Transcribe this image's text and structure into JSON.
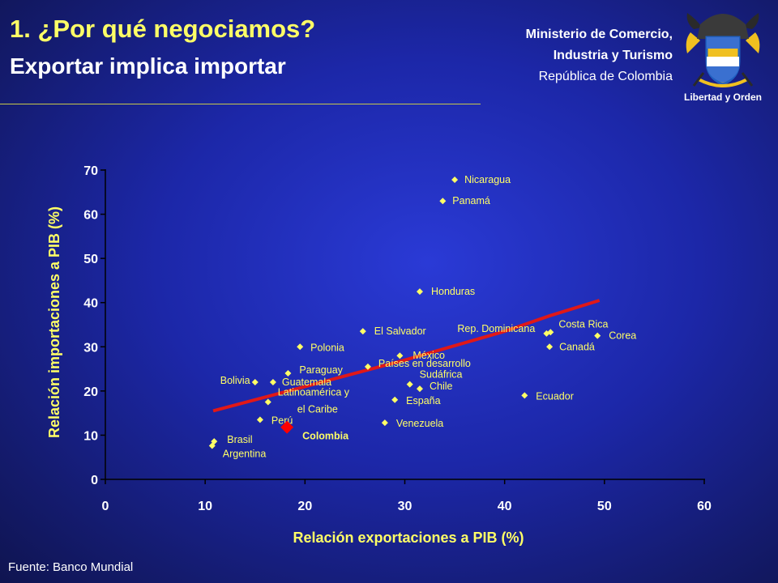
{
  "header": {
    "title": "1. ¿Por qué negociamos?",
    "subtitle": "Exportar implica importar",
    "ministry_line1": "Ministerio de Comercio,",
    "ministry_line2": "Industria y Turismo",
    "ministry_line3": "República de Colombia",
    "motto": "Libertad y Orden"
  },
  "footer": {
    "source": "Fuente: Banco Mundial"
  },
  "colors": {
    "title": "#ffff66",
    "marker": "#ffff66",
    "highlight": "#ff0000",
    "trend": "#e01818"
  },
  "chart_data": {
    "type": "scatter",
    "xlabel": "Relación exportaciones a PIB (%)",
    "ylabel": "Relación importaciones a PIB (%)",
    "xlim": [
      0,
      60
    ],
    "ylim": [
      0,
      70
    ],
    "xticks": [
      0,
      10,
      20,
      30,
      40,
      50,
      60
    ],
    "yticks": [
      0,
      10,
      20,
      30,
      40,
      50,
      60,
      70
    ],
    "grid": false,
    "points": [
      {
        "label": "Nicaragua",
        "x": 35.0,
        "y": 67.8
      },
      {
        "label": "Panamá",
        "x": 33.8,
        "y": 63.0
      },
      {
        "label": "Honduras",
        "x": 31.5,
        "y": 42.5
      },
      {
        "label": "El Salvador",
        "x": 25.8,
        "y": 33.5
      },
      {
        "label": "Rep. Dominicana",
        "x": 44.2,
        "y": 33.0
      },
      {
        "label": "Costa Rica",
        "x": 44.6,
        "y": 33.3
      },
      {
        "label": "Corea",
        "x": 49.3,
        "y": 32.5
      },
      {
        "label": "Canadá",
        "x": 44.5,
        "y": 30.0
      },
      {
        "label": "Polonia",
        "x": 19.5,
        "y": 30.0
      },
      {
        "label": "México",
        "x": 29.5,
        "y": 28.0
      },
      {
        "label": "Países en desarrollo",
        "x": 26.3,
        "y": 25.5
      },
      {
        "label": "Paraguay",
        "x": 18.3,
        "y": 24.0
      },
      {
        "label": "Bolivia",
        "x": 15.0,
        "y": 22.0
      },
      {
        "label": "Guatemala",
        "x": 16.8,
        "y": 22.0
      },
      {
        "label": "Sudáfrica",
        "x": 30.5,
        "y": 21.5
      },
      {
        "label": "Chile",
        "x": 31.5,
        "y": 20.5
      },
      {
        "label": "Latinoamérica y el Caribe",
        "x": 16.3,
        "y": 17.5
      },
      {
        "label": "España",
        "x": 29.0,
        "y": 18.0
      },
      {
        "label": "Ecuador",
        "x": 42.0,
        "y": 19.0
      },
      {
        "label": "Perú",
        "x": 15.5,
        "y": 13.5
      },
      {
        "label": "Venezuela",
        "x": 28.0,
        "y": 12.8
      },
      {
        "label": "Brasil",
        "x": 10.9,
        "y": 8.6
      },
      {
        "label": "Argentina",
        "x": 10.7,
        "y": 7.6
      },
      {
        "label": "Colombia",
        "x": 18.2,
        "y": 11.8,
        "highlight": true
      }
    ],
    "trendline": {
      "x": [
        10.8,
        20,
        30,
        40,
        44.5,
        49.5
      ],
      "y": [
        15.5,
        21.0,
        27.0,
        33.5,
        37.0,
        40.5
      ]
    }
  }
}
